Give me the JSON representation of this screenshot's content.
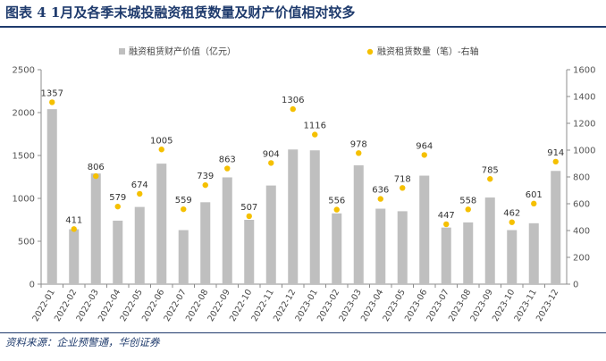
{
  "figure": {
    "title": "图表 4  1月及各季末城投融资租赁数量及财产价值相对较多",
    "source": "资料来源：企业预警通，华创证券"
  },
  "chart_data": {
    "type": "bar+scatter",
    "categories": [
      "2022-01",
      "2022-02",
      "2022-03",
      "2022-04",
      "2022-05",
      "2022-06",
      "2022-07",
      "2022-08",
      "2022-09",
      "2022-10",
      "2022-11",
      "2022-12",
      "2023-01",
      "2023-02",
      "2023-03",
      "2023-04",
      "2023-05",
      "2023-06",
      "2023-07",
      "2023-08",
      "2023-09",
      "2023-10",
      "2023-11",
      "2023-12"
    ],
    "series": [
      {
        "name": "融资租赁财产价值（亿元）",
        "type": "bar",
        "axis": "left",
        "color": "#bfbfbf",
        "values": [
          2040,
          640,
          1290,
          740,
          900,
          1405,
          630,
          955,
          1245,
          750,
          1150,
          1570,
          1560,
          825,
          1385,
          880,
          850,
          1265,
          660,
          720,
          1010,
          630,
          710,
          1320
        ]
      },
      {
        "name": "融资租赁数量（笔）-右轴",
        "type": "scatter",
        "axis": "right",
        "color": "#f5c000",
        "values": [
          1357,
          411,
          806,
          579,
          674,
          1005,
          559,
          739,
          863,
          507,
          904,
          1306,
          1116,
          556,
          978,
          636,
          718,
          964,
          447,
          558,
          785,
          462,
          601,
          914
        ]
      }
    ],
    "y_left": {
      "lim": [
        0,
        2500
      ],
      "ticks": [
        0,
        500,
        1000,
        1500,
        2000,
        2500
      ]
    },
    "y_right": {
      "lim": [
        0,
        1600
      ],
      "ticks": [
        0,
        200,
        400,
        600,
        800,
        1000,
        1200,
        1400,
        1600
      ]
    },
    "grid": false,
    "legend_position": "top"
  }
}
